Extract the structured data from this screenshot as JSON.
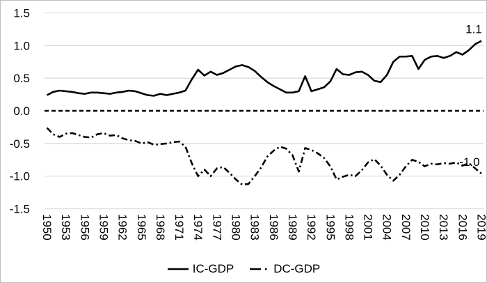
{
  "chart_data": {
    "type": "line",
    "title": "",
    "xlabel": "",
    "ylabel": "",
    "ylim": [
      -1.5,
      1.5
    ],
    "grid": "horizontal-only",
    "zero_line_style": "dashed-black",
    "legend_position": "bottom-center",
    "x": [
      1950,
      1951,
      1952,
      1953,
      1954,
      1955,
      1956,
      1957,
      1958,
      1959,
      1960,
      1961,
      1962,
      1963,
      1964,
      1965,
      1966,
      1967,
      1968,
      1969,
      1970,
      1971,
      1972,
      1973,
      1974,
      1975,
      1976,
      1977,
      1978,
      1979,
      1980,
      1981,
      1982,
      1983,
      1984,
      1985,
      1986,
      1987,
      1988,
      1989,
      1990,
      1991,
      1992,
      1993,
      1994,
      1995,
      1996,
      1997,
      1998,
      1999,
      2000,
      2001,
      2002,
      2003,
      2004,
      2005,
      2006,
      2007,
      2008,
      2009,
      2010,
      2011,
      2012,
      2013,
      2014,
      2015,
      2016,
      2017,
      2018,
      2019
    ],
    "x_tick_labels": [
      "1950",
      "1953",
      "1956",
      "1959",
      "1962",
      "1965",
      "1968",
      "1971",
      "1974",
      "1977",
      "1980",
      "1983",
      "1986",
      "1989",
      "1992",
      "1995",
      "1998",
      "2001",
      "2004",
      "2007",
      "2010",
      "2013",
      "2016",
      "2019"
    ],
    "y_ticks": [
      1.5,
      1.0,
      0.5,
      0.0,
      -0.5,
      -1.0,
      -1.5
    ],
    "y_tick_labels": [
      "1.5",
      "1.0",
      "0.5",
      "0.0",
      "-0.5",
      "-1.0",
      "-1.5"
    ],
    "series": [
      {
        "name": "IC-GDP",
        "style": "solid",
        "color": "#000000",
        "end_label": "1.1",
        "values": [
          0.24,
          0.29,
          0.31,
          0.3,
          0.29,
          0.27,
          0.26,
          0.28,
          0.28,
          0.27,
          0.26,
          0.28,
          0.29,
          0.31,
          0.3,
          0.27,
          0.24,
          0.23,
          0.26,
          0.24,
          0.26,
          0.28,
          0.31,
          0.48,
          0.63,
          0.54,
          0.6,
          0.55,
          0.58,
          0.63,
          0.68,
          0.7,
          0.67,
          0.61,
          0.52,
          0.44,
          0.38,
          0.33,
          0.28,
          0.28,
          0.3,
          0.53,
          0.3,
          0.33,
          0.36,
          0.45,
          0.64,
          0.56,
          0.55,
          0.59,
          0.6,
          0.55,
          0.46,
          0.44,
          0.55,
          0.75,
          0.83,
          0.83,
          0.84,
          0.64,
          0.78,
          0.83,
          0.84,
          0.81,
          0.84,
          0.9,
          0.86,
          0.93,
          1.02,
          1.07
        ]
      },
      {
        "name": "DC-GDP",
        "style": "dash-dot",
        "color": "#000000",
        "end_label": "-1.0",
        "values": [
          -0.26,
          -0.36,
          -0.4,
          -0.35,
          -0.34,
          -0.37,
          -0.4,
          -0.41,
          -0.36,
          -0.34,
          -0.38,
          -0.37,
          -0.42,
          -0.45,
          -0.46,
          -0.5,
          -0.48,
          -0.52,
          -0.51,
          -0.5,
          -0.48,
          -0.47,
          -0.55,
          -0.8,
          -1.0,
          -0.9,
          -1.0,
          -0.88,
          -0.86,
          -0.95,
          -1.05,
          -1.13,
          -1.12,
          -1.0,
          -0.87,
          -0.7,
          -0.61,
          -0.55,
          -0.58,
          -0.68,
          -0.93,
          -0.57,
          -0.6,
          -0.65,
          -0.72,
          -0.85,
          -1.05,
          -1.01,
          -0.98,
          -1.0,
          -0.91,
          -0.79,
          -0.74,
          -0.84,
          -0.98,
          -1.07,
          -0.98,
          -0.85,
          -0.75,
          -0.78,
          -0.85,
          -0.81,
          -0.82,
          -0.8,
          -0.81,
          -0.79,
          -0.84,
          -0.8,
          -0.88,
          -0.96
        ]
      }
    ]
  },
  "legend": {
    "items": [
      {
        "label": "IC-GDP",
        "swatch": "solid-line"
      },
      {
        "label": "DC-GDP",
        "swatch": "dash-dot-line"
      }
    ]
  },
  "colors": {
    "line": "#000000",
    "gridline": "#d9d9d9",
    "frame_border": "#bdbdbd",
    "background": "#ffffff",
    "text": "#000000"
  }
}
